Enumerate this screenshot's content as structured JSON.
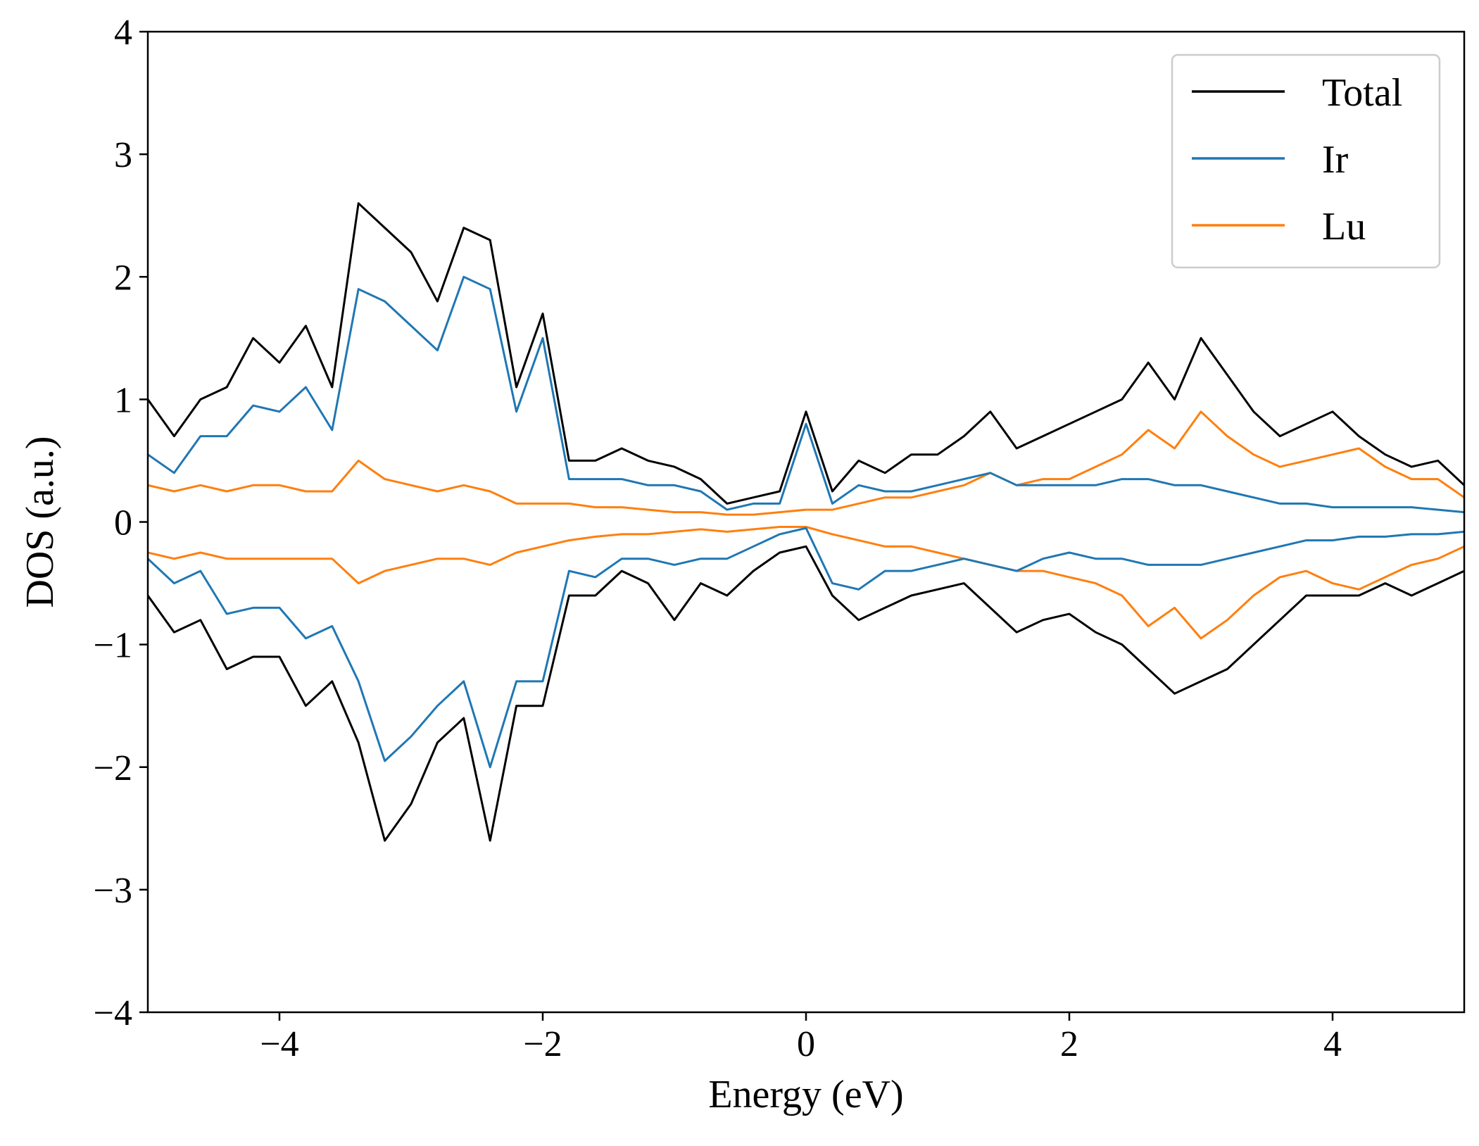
{
  "chart_data": {
    "type": "line",
    "title": "",
    "xlabel": "Energy (eV)",
    "ylabel": "DOS (a.u.)",
    "xlim": [
      -5,
      5
    ],
    "ylim": [
      -4,
      4
    ],
    "xticks": [
      -4,
      -2,
      0,
      2,
      4
    ],
    "yticks": [
      -4,
      -3,
      -2,
      -1,
      0,
      1,
      2,
      3,
      4
    ],
    "xtick_labels": [
      "−4",
      "−2",
      "0",
      "2",
      "4"
    ],
    "ytick_labels": [
      "−4",
      "−3",
      "−2",
      "−1",
      "0",
      "1",
      "2",
      "3",
      "4"
    ],
    "grid": false,
    "legend_position": "top-right",
    "x": [
      -5.0,
      -4.8,
      -4.6,
      -4.4,
      -4.2,
      -4.0,
      -3.8,
      -3.6,
      -3.4,
      -3.2,
      -3.0,
      -2.8,
      -2.6,
      -2.4,
      -2.2,
      -2.0,
      -1.8,
      -1.6,
      -1.4,
      -1.2,
      -1.0,
      -0.8,
      -0.6,
      -0.4,
      -0.2,
      0.0,
      0.2,
      0.4,
      0.6,
      0.8,
      1.0,
      1.2,
      1.4,
      1.6,
      1.8,
      2.0,
      2.2,
      2.4,
      2.6,
      2.8,
      3.0,
      3.2,
      3.4,
      3.6,
      3.8,
      4.0,
      4.2,
      4.4,
      4.6,
      4.8,
      5.0
    ],
    "series": [
      {
        "name": "Total",
        "color": "#000000",
        "spin_up": [
          1.0,
          0.7,
          1.0,
          1.1,
          1.5,
          1.3,
          1.6,
          1.1,
          2.6,
          2.4,
          2.2,
          1.8,
          2.4,
          2.3,
          1.1,
          1.7,
          0.5,
          0.5,
          0.6,
          0.5,
          0.45,
          0.35,
          0.15,
          0.2,
          0.25,
          0.9,
          0.25,
          0.5,
          0.4,
          0.55,
          0.55,
          0.7,
          0.9,
          0.6,
          0.7,
          0.8,
          0.9,
          1.0,
          1.3,
          1.0,
          1.5,
          1.2,
          0.9,
          0.7,
          0.8,
          0.9,
          0.7,
          0.55,
          0.45,
          0.5,
          0.3
        ],
        "spin_down": [
          -0.6,
          -0.9,
          -0.8,
          -1.2,
          -1.1,
          -1.1,
          -1.5,
          -1.3,
          -1.8,
          -2.6,
          -2.3,
          -1.8,
          -1.6,
          -2.6,
          -1.5,
          -1.5,
          -0.6,
          -0.6,
          -0.4,
          -0.5,
          -0.8,
          -0.5,
          -0.6,
          -0.4,
          -0.25,
          -0.2,
          -0.6,
          -0.8,
          -0.7,
          -0.6,
          -0.55,
          -0.5,
          -0.7,
          -0.9,
          -0.8,
          -0.75,
          -0.9,
          -1.0,
          -1.2,
          -1.4,
          -1.3,
          -1.2,
          -1.0,
          -0.8,
          -0.6,
          -0.6,
          -0.6,
          -0.5,
          -0.6,
          -0.5,
          -0.4
        ]
      },
      {
        "name": "Ir",
        "color": "#1f77b4",
        "spin_up": [
          0.55,
          0.4,
          0.7,
          0.7,
          0.95,
          0.9,
          1.1,
          0.75,
          1.9,
          1.8,
          1.6,
          1.4,
          2.0,
          1.9,
          0.9,
          1.5,
          0.35,
          0.35,
          0.35,
          0.3,
          0.3,
          0.25,
          0.1,
          0.15,
          0.15,
          0.8,
          0.15,
          0.3,
          0.25,
          0.25,
          0.3,
          0.35,
          0.4,
          0.3,
          0.3,
          0.3,
          0.3,
          0.35,
          0.35,
          0.3,
          0.3,
          0.25,
          0.2,
          0.15,
          0.15,
          0.12,
          0.12,
          0.12,
          0.12,
          0.1,
          0.08
        ],
        "spin_down": [
          -0.3,
          -0.5,
          -0.4,
          -0.75,
          -0.7,
          -0.7,
          -0.95,
          -0.85,
          -1.3,
          -1.95,
          -1.75,
          -1.5,
          -1.3,
          -2.0,
          -1.3,
          -1.3,
          -0.4,
          -0.45,
          -0.3,
          -0.3,
          -0.35,
          -0.3,
          -0.3,
          -0.2,
          -0.1,
          -0.05,
          -0.5,
          -0.55,
          -0.4,
          -0.4,
          -0.35,
          -0.3,
          -0.35,
          -0.4,
          -0.3,
          -0.25,
          -0.3,
          -0.3,
          -0.35,
          -0.35,
          -0.35,
          -0.3,
          -0.25,
          -0.2,
          -0.15,
          -0.15,
          -0.12,
          -0.12,
          -0.1,
          -0.1,
          -0.08
        ]
      },
      {
        "name": "Lu",
        "color": "#ff7f0e",
        "spin_up": [
          0.3,
          0.25,
          0.3,
          0.25,
          0.3,
          0.3,
          0.25,
          0.25,
          0.5,
          0.35,
          0.3,
          0.25,
          0.3,
          0.25,
          0.15,
          0.15,
          0.15,
          0.12,
          0.12,
          0.1,
          0.08,
          0.08,
          0.06,
          0.06,
          0.08,
          0.1,
          0.1,
          0.15,
          0.2,
          0.2,
          0.25,
          0.3,
          0.4,
          0.3,
          0.35,
          0.35,
          0.45,
          0.55,
          0.75,
          0.6,
          0.9,
          0.7,
          0.55,
          0.45,
          0.5,
          0.55,
          0.6,
          0.45,
          0.35,
          0.35,
          0.2
        ],
        "spin_down": [
          -0.25,
          -0.3,
          -0.25,
          -0.3,
          -0.3,
          -0.3,
          -0.3,
          -0.3,
          -0.5,
          -0.4,
          -0.35,
          -0.3,
          -0.3,
          -0.35,
          -0.25,
          -0.2,
          -0.15,
          -0.12,
          -0.1,
          -0.1,
          -0.08,
          -0.06,
          -0.08,
          -0.06,
          -0.04,
          -0.04,
          -0.1,
          -0.15,
          -0.2,
          -0.2,
          -0.25,
          -0.3,
          -0.35,
          -0.4,
          -0.4,
          -0.45,
          -0.5,
          -0.6,
          -0.85,
          -0.7,
          -0.95,
          -0.8,
          -0.6,
          -0.45,
          -0.4,
          -0.5,
          -0.55,
          -0.45,
          -0.35,
          -0.3,
          -0.2
        ]
      }
    ]
  }
}
